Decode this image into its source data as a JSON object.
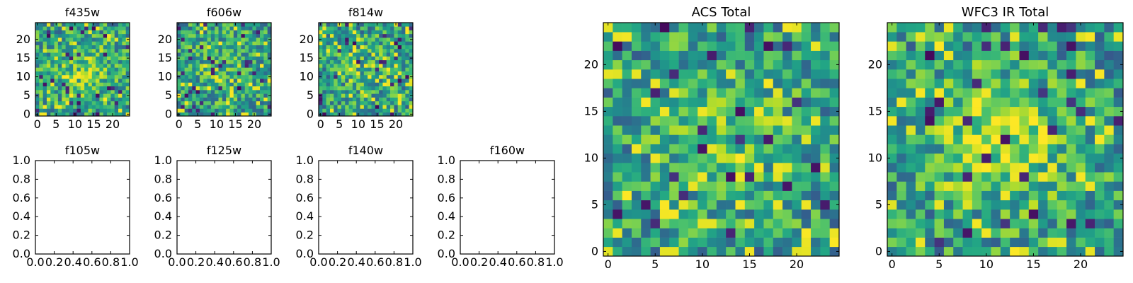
{
  "colors": {
    "colormap": "viridis",
    "background": "#ffffff",
    "axis_frame": "#000000"
  },
  "chart_data": [
    {
      "type": "heatmap",
      "title": "f435w",
      "xlim": [
        -0.5,
        24.5
      ],
      "ylim": [
        -0.5,
        24.5
      ],
      "xticks": [
        0,
        5,
        10,
        15,
        20
      ],
      "yticks": [
        0,
        5,
        10,
        15,
        20
      ],
      "grid_size": [
        25,
        25
      ],
      "center_peak": false,
      "seed": 11,
      "blob": 0.18,
      "grid": false,
      "legend": "none"
    },
    {
      "type": "heatmap",
      "title": "f606w",
      "xlim": [
        -0.5,
        24.5
      ],
      "ylim": [
        -0.5,
        24.5
      ],
      "xticks": [
        0,
        5,
        10,
        15,
        20
      ],
      "yticks": [
        0,
        5,
        10,
        15,
        20
      ],
      "grid_size": [
        25,
        25
      ],
      "center_peak": false,
      "seed": 23,
      "blob": 0.12,
      "grid": false,
      "legend": "none"
    },
    {
      "type": "heatmap",
      "title": "f814w",
      "xlim": [
        -0.5,
        24.5
      ],
      "ylim": [
        -0.5,
        24.5
      ],
      "xticks": [
        0,
        5,
        10,
        15,
        20
      ],
      "yticks": [
        0,
        5,
        10,
        15,
        20
      ],
      "grid_size": [
        25,
        25
      ],
      "center_peak": false,
      "seed": 37,
      "blob": 0.08,
      "grid": false,
      "legend": "none"
    },
    {
      "type": "heatmap",
      "title": "f105w",
      "empty": true,
      "xlim": [
        0,
        1
      ],
      "ylim": [
        0,
        1
      ],
      "xticks": [
        "0.0",
        "0.2",
        "0.4",
        "0.6",
        "0.8",
        "1.0"
      ],
      "yticks": [
        "0.0",
        "0.2",
        "0.4",
        "0.6",
        "0.8",
        "1.0"
      ],
      "grid": false,
      "legend": "none"
    },
    {
      "type": "heatmap",
      "title": "f125w",
      "empty": true,
      "xlim": [
        0,
        1
      ],
      "ylim": [
        0,
        1
      ],
      "xticks": [
        "0.0",
        "0.2",
        "0.4",
        "0.6",
        "0.8",
        "1.0"
      ],
      "yticks": [
        "0.0",
        "0.2",
        "0.4",
        "0.6",
        "0.8",
        "1.0"
      ],
      "grid": false,
      "legend": "none"
    },
    {
      "type": "heatmap",
      "title": "f140w",
      "empty": true,
      "xlim": [
        0,
        1
      ],
      "ylim": [
        0,
        1
      ],
      "xticks": [
        "0.0",
        "0.2",
        "0.4",
        "0.6",
        "0.8",
        "1.0"
      ],
      "yticks": [
        "0.0",
        "0.2",
        "0.4",
        "0.6",
        "0.8",
        "1.0"
      ],
      "grid": false,
      "legend": "none"
    },
    {
      "type": "heatmap",
      "title": "f160w",
      "empty": true,
      "xlim": [
        0,
        1
      ],
      "ylim": [
        0,
        1
      ],
      "xticks": [
        "0.0",
        "0.2",
        "0.4",
        "0.6",
        "0.8",
        "1.0"
      ],
      "yticks": [
        "0.0",
        "0.2",
        "0.4",
        "0.6",
        "0.8",
        "1.0"
      ],
      "grid": false,
      "legend": "none"
    },
    {
      "type": "heatmap",
      "title": "ACS Total",
      "xlim": [
        -0.5,
        24.5
      ],
      "ylim": [
        -0.5,
        24.5
      ],
      "xticks": [
        0,
        5,
        10,
        15,
        20
      ],
      "yticks": [
        0,
        5,
        10,
        15,
        20
      ],
      "grid_size": [
        25,
        25
      ],
      "center_peak": true,
      "seed": 53,
      "blob": 0.22,
      "grid": false,
      "legend": "none"
    },
    {
      "type": "heatmap",
      "title": "WFC3 IR Total",
      "xlim": [
        -0.5,
        24.5
      ],
      "ylim": [
        -0.5,
        24.5
      ],
      "xticks": [
        0,
        5,
        10,
        15,
        20
      ],
      "yticks": [
        0,
        5,
        10,
        15,
        20
      ],
      "grid_size": [
        25,
        25
      ],
      "center_peak": true,
      "seed": 71,
      "blob": 0.35,
      "grid": false,
      "legend": "none"
    }
  ]
}
